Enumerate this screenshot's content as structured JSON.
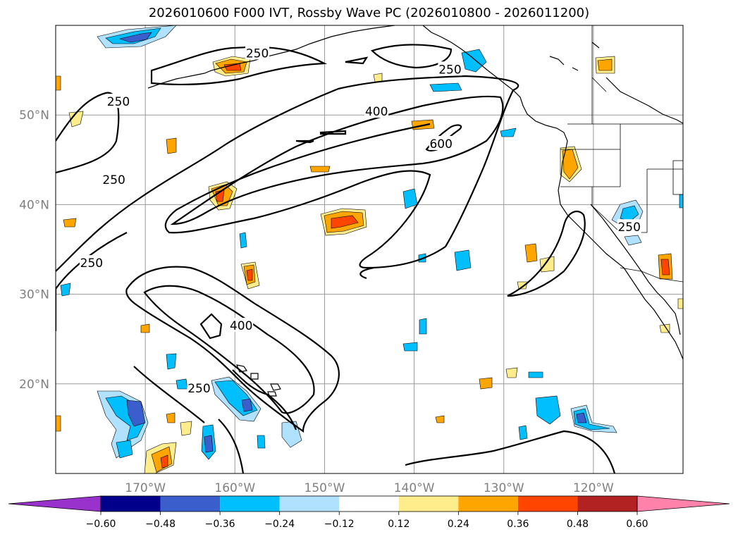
{
  "title": "2026010600 F000 IVT, Rossby Wave PC (2026010800 - 2026011200)",
  "map": {
    "lon_range": [
      -180,
      -110
    ],
    "lat_range": [
      10,
      60
    ],
    "lat_ticks": [
      {
        "value": 20,
        "label": "20°N"
      },
      {
        "value": 30,
        "label": "30°N"
      },
      {
        "value": 40,
        "label": "40°N"
      },
      {
        "value": 50,
        "label": "50°N"
      }
    ],
    "lon_ticks": [
      {
        "value": -170,
        "label": "170°W"
      },
      {
        "value": -160,
        "label": "160°W"
      },
      {
        "value": -150,
        "label": "150°W"
      },
      {
        "value": -140,
        "label": "140°W"
      },
      {
        "value": -130,
        "label": "130°W"
      },
      {
        "value": -120,
        "label": "120°W"
      }
    ],
    "grid": true,
    "contour_labels": [
      {
        "text": "250",
        "lon": -157.5,
        "lat": 56.9
      },
      {
        "text": "250",
        "lon": -173,
        "lat": 51.5
      },
      {
        "text": "400",
        "lon": -144.2,
        "lat": 50.4
      },
      {
        "text": "600",
        "lon": -137,
        "lat": 46.8
      },
      {
        "text": "250",
        "lon": -173.5,
        "lat": 42.8
      },
      {
        "text": "250",
        "lon": -136,
        "lat": 55.1
      },
      {
        "text": "250",
        "lon": -176,
        "lat": 33.5
      },
      {
        "text": "250",
        "lon": -116,
        "lat": 37.5
      },
      {
        "text": "400",
        "lon": -159.3,
        "lat": 26.5
      },
      {
        "text": "250",
        "lon": -164,
        "lat": 19.5
      }
    ]
  },
  "colorbar": {
    "colors": [
      "#9932cc",
      "#00008b",
      "#3a5fcd",
      "#00bfff",
      "#b0e2ff",
      "#ffffff",
      "#ffec8b",
      "#ffa500",
      "#ff4500",
      "#b22222",
      "#ff82ab"
    ],
    "ticks": [
      "−0.60",
      "−0.48",
      "−0.36",
      "−0.24",
      "−0.12",
      "0.12",
      "0.24",
      "0.36",
      "0.48",
      "0.60"
    ]
  }
}
